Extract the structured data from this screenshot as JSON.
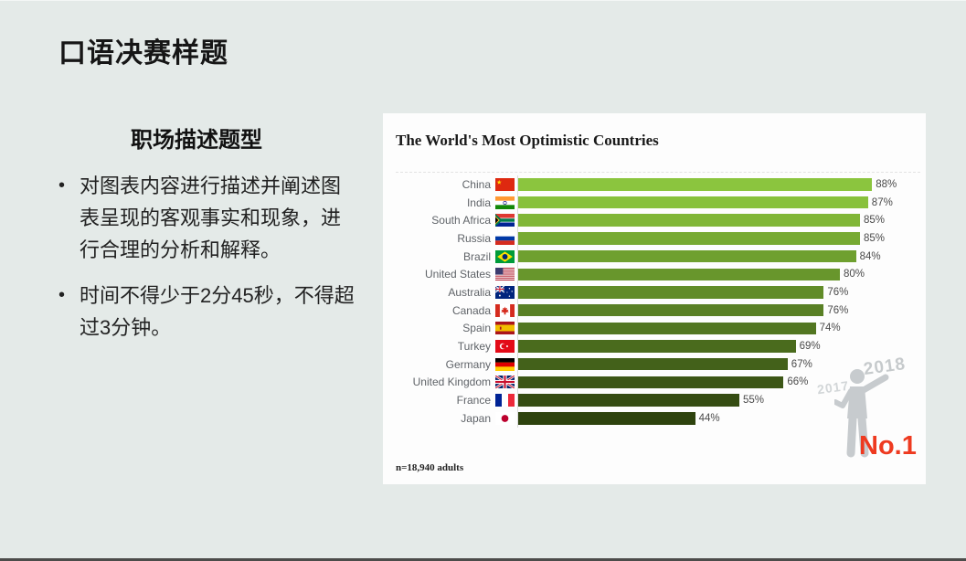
{
  "slide": {
    "title": "口语决赛样题",
    "subtitle": "职场描述题型",
    "bullets": [
      "对图表内容进行描述并阐述图表呈现的客观事实和现象，进行合理的分析和解释。",
      "时间不得少于2分45秒，不得超过3分钟。"
    ]
  },
  "chart_data": {
    "type": "bar",
    "orientation": "horizontal",
    "title": "The World's Most Optimistic Countries",
    "source_note": "n=18,940 adults",
    "unit": "%",
    "xlim": [
      0,
      100
    ],
    "year_labels": {
      "front": "2018",
      "back": "2017"
    },
    "badge": "No.1",
    "badge_color": "#ee3a20",
    "categories": [
      "China",
      "India",
      "South Africa",
      "Russia",
      "Brazil",
      "United States",
      "Australia",
      "Canada",
      "Spain",
      "Turkey",
      "Germany",
      "United Kingdom",
      "France",
      "Japan"
    ],
    "values": [
      88,
      87,
      85,
      85,
      84,
      80,
      76,
      76,
      74,
      69,
      67,
      66,
      55,
      44
    ],
    "rows": [
      {
        "country": "China",
        "flag": "china",
        "value": 88,
        "label": "88%",
        "color": "#8bc53e"
      },
      {
        "country": "India",
        "flag": "india",
        "value": 87,
        "label": "87%",
        "color": "#88c13c"
      },
      {
        "country": "South Africa",
        "flag": "south-africa",
        "value": 85,
        "label": "85%",
        "color": "#80b637"
      },
      {
        "country": "Russia",
        "flag": "russia",
        "value": 85,
        "label": "85%",
        "color": "#77aa32"
      },
      {
        "country": "Brazil",
        "flag": "brazil",
        "value": 84,
        "label": "84%",
        "color": "#6fa02f"
      },
      {
        "country": "United States",
        "flag": "united-states",
        "value": 80,
        "label": "80%",
        "color": "#68962c"
      },
      {
        "country": "Australia",
        "flag": "australia",
        "value": 76,
        "label": "76%",
        "color": "#618c28"
      },
      {
        "country": "Canada",
        "flag": "canada",
        "value": 76,
        "label": "76%",
        "color": "#598025"
      },
      {
        "country": "Spain",
        "flag": "spain",
        "value": 74,
        "label": "74%",
        "color": "#527621"
      },
      {
        "country": "Turkey",
        "flag": "turkey",
        "value": 69,
        "label": "69%",
        "color": "#4a6b1d"
      },
      {
        "country": "Germany",
        "flag": "germany",
        "value": 67,
        "label": "67%",
        "color": "#43611a"
      },
      {
        "country": "United Kingdom",
        "flag": "united-kingdom",
        "value": 66,
        "label": "66%",
        "color": "#3c5616"
      },
      {
        "country": "France",
        "flag": "france",
        "value": 55,
        "label": "55%",
        "color": "#354c12"
      },
      {
        "country": "Japan",
        "flag": "japan",
        "value": 44,
        "label": "44%",
        "color": "#2e430e"
      }
    ]
  }
}
